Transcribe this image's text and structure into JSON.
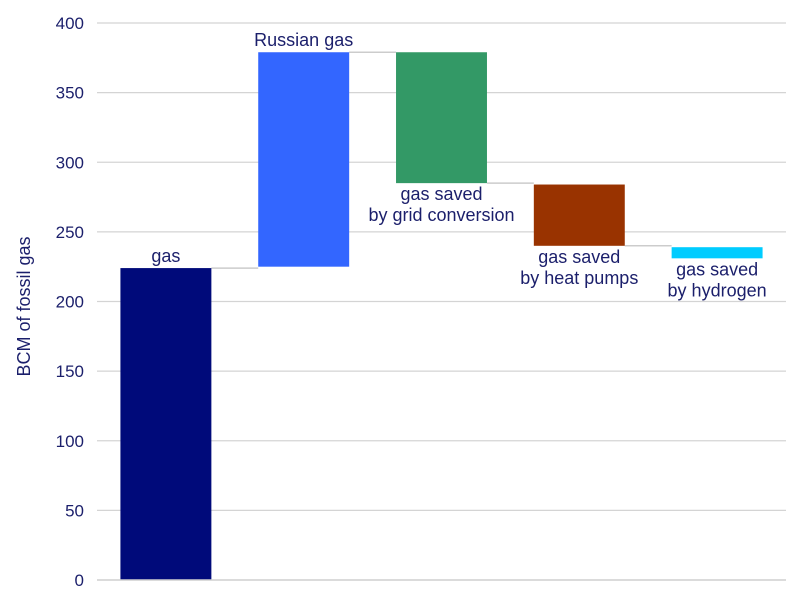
{
  "chart_data": {
    "type": "bar",
    "variant": "waterfall",
    "ylabel": "BCM of fossil gas",
    "xlabel": "",
    "title": "",
    "ylim": [
      0,
      400
    ],
    "yticks": [
      0,
      50,
      100,
      150,
      200,
      250,
      300,
      350,
      400
    ],
    "grid": true,
    "bars": [
      {
        "label_lines": [
          "gas"
        ],
        "bottom": 0,
        "top": 224,
        "color": "#000a7a"
      },
      {
        "label_lines": [
          "Russian gas"
        ],
        "bottom": 225,
        "top": 379,
        "color": "#3366ff"
      },
      {
        "label_lines": [
          "gas saved",
          "by grid conversion"
        ],
        "bottom": 285,
        "top": 379,
        "color": "#339966"
      },
      {
        "label_lines": [
          "gas saved",
          "by heat pumps"
        ],
        "bottom": 240,
        "top": 284,
        "color": "#993300"
      },
      {
        "label_lines": [
          "gas saved",
          "by hydrogen"
        ],
        "bottom": 231,
        "top": 239,
        "color": "#00ccff"
      }
    ]
  }
}
